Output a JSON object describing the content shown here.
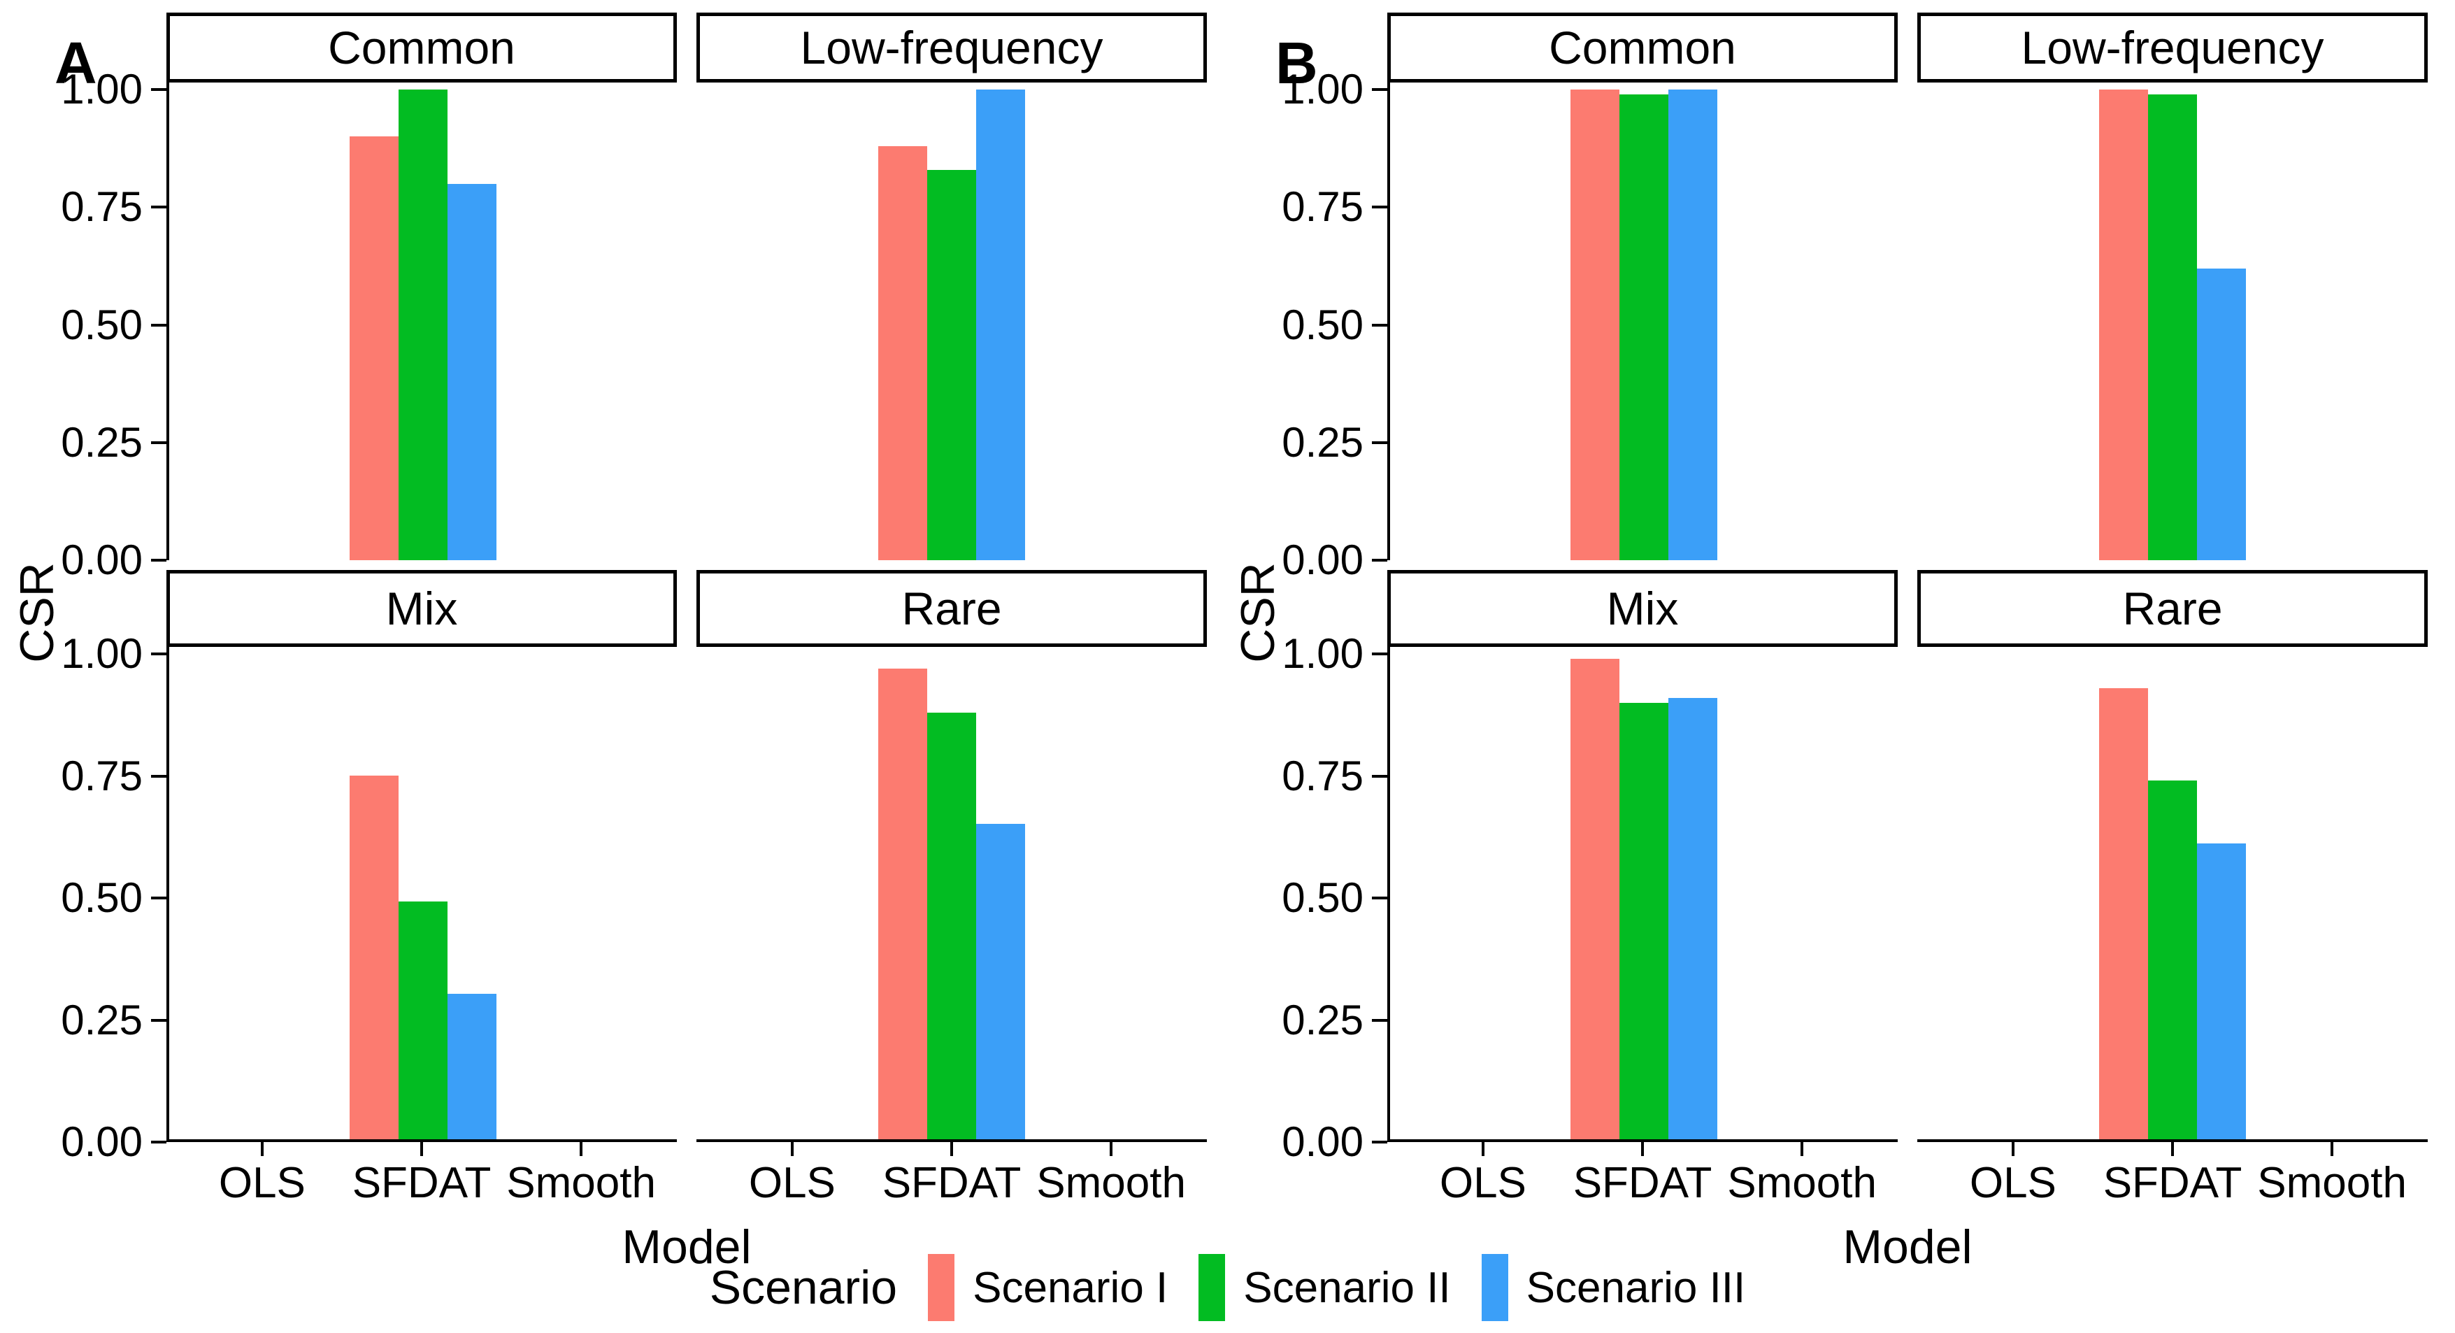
{
  "figure": {
    "background": "#FFFFFF"
  },
  "axis": {
    "ytick_labels": [
      "0.00",
      "0.25",
      "0.50",
      "0.75",
      "1.00"
    ],
    "yticks": [
      0,
      0.25,
      0.5,
      0.75,
      1.0
    ]
  },
  "legend": {
    "title": "Scenario",
    "entries": [
      {
        "label": "Scenario I",
        "color": "#FC7B70"
      },
      {
        "label": "Scenario II",
        "color": "#02BC22"
      },
      {
        "label": "Scenario III",
        "color": "#3B9FF8"
      }
    ]
  },
  "chart_data": [
    {
      "type": "bar",
      "panel_label": "A",
      "title": "",
      "xlabel": "Model",
      "ylabel": "CSR",
      "ylim": [
        0,
        1
      ],
      "grid": "off",
      "legend_position": "bottom",
      "categories": [
        "OLS",
        "SFDAT",
        "Smooth"
      ],
      "series": [
        "Scenario I",
        "Scenario II",
        "Scenario III"
      ],
      "colors": [
        "#FC7B70",
        "#02BC22",
        "#3B9FF8"
      ],
      "facet_layout": [
        [
          "Common",
          "Low-frequency"
        ],
        [
          "Mix",
          "Rare"
        ]
      ],
      "facets": {
        "Common": {
          "SFDAT": [
            0.9,
            1.0,
            0.8
          ]
        },
        "Low-frequency": {
          "SFDAT": [
            0.88,
            0.83,
            1.0
          ]
        },
        "Mix": {
          "SFDAT": [
            0.75,
            0.49,
            0.3
          ]
        },
        "Rare": {
          "SFDAT": [
            0.97,
            0.88,
            0.65
          ]
        }
      }
    },
    {
      "type": "bar",
      "panel_label": "B",
      "title": "",
      "xlabel": "Model",
      "ylabel": "CSR",
      "ylim": [
        0,
        1
      ],
      "grid": "off",
      "legend_position": "bottom",
      "categories": [
        "OLS",
        "SFDAT",
        "Smooth"
      ],
      "series": [
        "Scenario I",
        "Scenario II",
        "Scenario III"
      ],
      "colors": [
        "#FC7B70",
        "#02BC22",
        "#3B9FF8"
      ],
      "facet_layout": [
        [
          "Common",
          "Low-frequency"
        ],
        [
          "Mix",
          "Rare"
        ]
      ],
      "facets": {
        "Common": {
          "SFDAT": [
            1.0,
            0.99,
            1.0
          ]
        },
        "Low-frequency": {
          "SFDAT": [
            1.0,
            0.99,
            0.62
          ]
        },
        "Mix": {
          "SFDAT": [
            0.99,
            0.9,
            0.91
          ]
        },
        "Rare": {
          "SFDAT": [
            0.93,
            0.74,
            0.61
          ]
        }
      }
    }
  ]
}
